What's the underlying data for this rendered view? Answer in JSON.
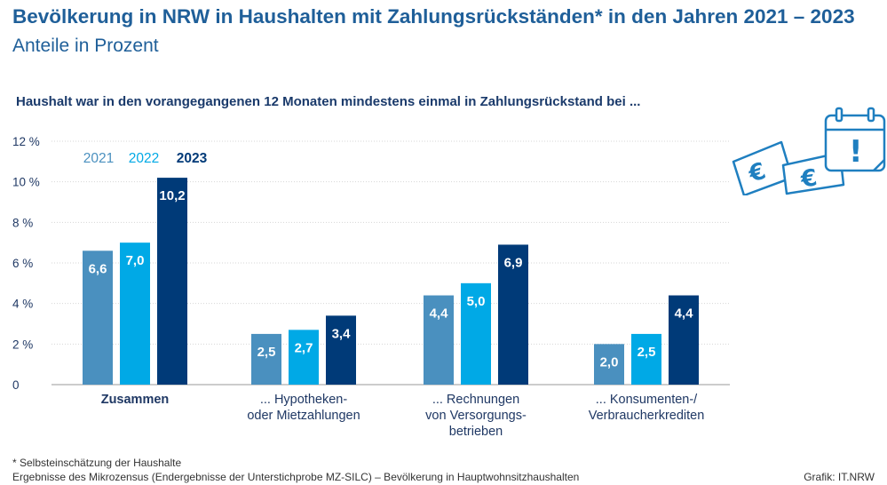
{
  "header": {
    "title": "Bevölkerung in NRW in Haushalten mit Zahlungsrückständen* in den Jahren 2021 – 2023",
    "subtitle": "Anteile in Prozent"
  },
  "question": "Haushalt war in den vorangegangenen 12 Monaten mindestens einmal in Zahlungsrückstand bei ...",
  "footer": {
    "note": "* Selbsteinschätzung der Haushalte",
    "source": "Ergebnisse des Mikrozensus (Endergebnisse der Unterstichprobe MZ-SILC) – Bevölkerung in Hauptwohnsitzhaushalten",
    "credit": "Grafik: IT.NRW"
  },
  "icon": {
    "name": "calendar-euro-notes-icon",
    "symbol": "!",
    "currency": "€"
  },
  "colors": {
    "2021": "#4a90bf",
    "2022": "#00a9e6",
    "2023": "#003a78",
    "axis_text": "#1f3864",
    "grid": "#d6d6d6"
  },
  "chart_data": {
    "type": "bar",
    "categories": [
      [
        "Zusammen"
      ],
      [
        "... Hypotheken-",
        "oder Mietzahlungen"
      ],
      [
        "... Rechnungen",
        "von Versorgungs-",
        "betrieben"
      ],
      [
        "... Konsumenten-/",
        "Verbraucherkrediten"
      ]
    ],
    "series": [
      {
        "name": "2021",
        "values": [
          6.6,
          2.5,
          4.4,
          2.0
        ],
        "labels": [
          "6,6",
          "2,5",
          "4,4",
          "2,0"
        ]
      },
      {
        "name": "2022",
        "values": [
          7.0,
          2.7,
          5.0,
          2.5
        ],
        "labels": [
          "7,0",
          "2,7",
          "5,0",
          "2,5"
        ]
      },
      {
        "name": "2023",
        "values": [
          10.2,
          3.4,
          6.9,
          4.4
        ],
        "labels": [
          "10,2",
          "3,4",
          "6,9",
          "4,4"
        ]
      }
    ],
    "yticks": [
      0,
      2,
      4,
      6,
      8,
      10,
      12
    ],
    "ytick_labels": [
      "0",
      "2 %",
      "4 %",
      "6 %",
      "8 %",
      "10 %",
      "12 %"
    ],
    "ylim": [
      0,
      12
    ],
    "grid": true,
    "legend": "top-left"
  }
}
